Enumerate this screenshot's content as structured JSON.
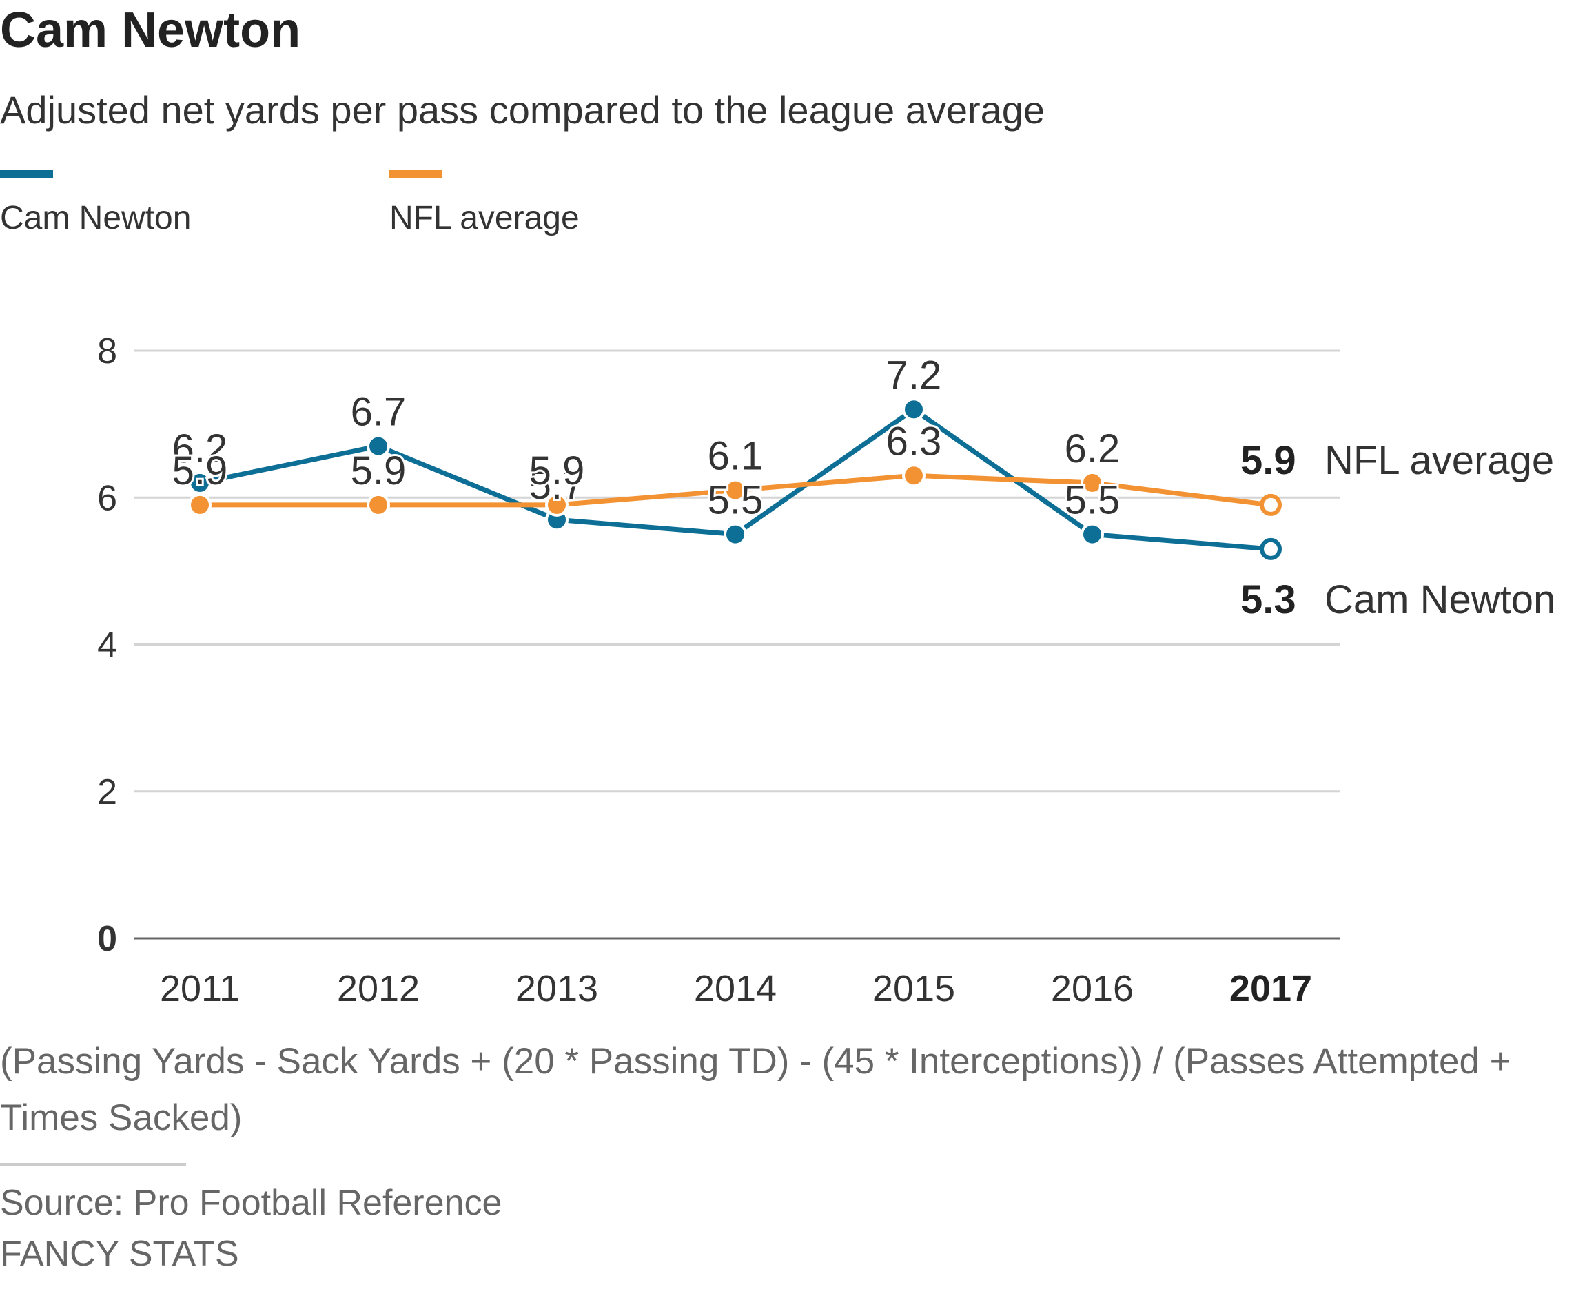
{
  "colors": {
    "cam": "#0e6f96",
    "nfl": "#f39233",
    "grid": "#d4d4d4",
    "axis": "#666666"
  },
  "chart_data": {
    "type": "line",
    "title": "Cam Newton",
    "subtitle": "Adjusted net yards per pass compared to the league average",
    "categories": [
      "2011",
      "2012",
      "2013",
      "2014",
      "2015",
      "2016",
      "2017"
    ],
    "highlight_category": "2017",
    "ylim": [
      0,
      8
    ],
    "yticks": [
      "0",
      "2",
      "4",
      "6",
      "8"
    ],
    "grid": true,
    "legend_placement": "top-left",
    "series": [
      {
        "name": "Cam Newton",
        "color": "#0e6f96",
        "values": [
          6.2,
          6.7,
          5.7,
          5.5,
          7.2,
          5.5,
          5.3
        ],
        "labels": [
          "6.2",
          "6.7",
          "5.7",
          "5.5",
          "7.2",
          "5.5",
          "5.3"
        ],
        "end_label": "Cam Newton"
      },
      {
        "name": "NFL average",
        "color": "#f39233",
        "values": [
          5.9,
          5.9,
          5.9,
          6.1,
          6.3,
          6.2,
          5.9
        ],
        "labels": [
          "5.9",
          "5.9",
          "5.9",
          "6.1",
          "6.3",
          "6.2",
          "5.9"
        ],
        "end_label": "NFL average"
      }
    ]
  },
  "legend": [
    {
      "label": "Cam Newton",
      "color": "#0e6f96"
    },
    {
      "label": "NFL average",
      "color": "#f39233"
    }
  ],
  "footnote": "(Passing Yards - Sack Yards + (20 * Passing TD) - (45 * Interceptions)) / (Passes Attempted + Times Sacked)",
  "source": "Source: Pro Football Reference",
  "credit": "FANCY STATS"
}
